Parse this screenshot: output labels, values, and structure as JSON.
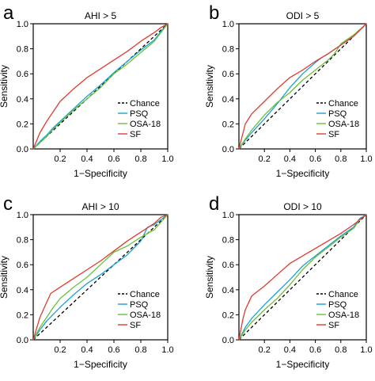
{
  "chart_data": [
    {
      "type": "line",
      "panel_letter": "a",
      "title": "AHI > 5",
      "xlabel": "1−Specificity",
      "ylabel": "Sensitivity",
      "xlim": [
        0,
        1
      ],
      "ylim": [
        0,
        1
      ],
      "xticks": [
        "0.2",
        "0.4",
        "0.6",
        "0.8",
        "1.0"
      ],
      "yticks": [
        "0.0",
        "0.2",
        "0.4",
        "0.6",
        "0.8",
        "1.0"
      ],
      "grid": false,
      "legend_position": "bottom-right",
      "series": [
        {
          "name": "Chance",
          "color": "#000000",
          "style": "dashed",
          "x": [
            0,
            1
          ],
          "y": [
            0,
            1
          ]
        },
        {
          "name": "PSQ",
          "color": "#1aa1d6",
          "style": "solid",
          "x": [
            0,
            0.05,
            0.1,
            0.15,
            0.2,
            0.3,
            0.4,
            0.5,
            0.6,
            0.7,
            0.8,
            0.9,
            0.95,
            1
          ],
          "y": [
            0,
            0.06,
            0.11,
            0.17,
            0.22,
            0.32,
            0.42,
            0.51,
            0.61,
            0.7,
            0.79,
            0.87,
            0.94,
            1
          ]
        },
        {
          "name": "OSA-18",
          "color": "#6cc03a",
          "style": "solid",
          "x": [
            0,
            0.05,
            0.1,
            0.15,
            0.2,
            0.3,
            0.4,
            0.5,
            0.6,
            0.7,
            0.8,
            0.9,
            0.95,
            1
          ],
          "y": [
            0,
            0.05,
            0.1,
            0.16,
            0.21,
            0.31,
            0.4,
            0.49,
            0.6,
            0.68,
            0.77,
            0.86,
            0.93,
            1
          ]
        },
        {
          "name": "SF",
          "color": "#e03a2e",
          "style": "solid",
          "x": [
            0,
            0.05,
            0.1,
            0.15,
            0.2,
            0.3,
            0.4,
            0.5,
            0.6,
            0.7,
            0.8,
            0.9,
            0.95,
            1
          ],
          "y": [
            0,
            0.13,
            0.22,
            0.3,
            0.38,
            0.48,
            0.57,
            0.64,
            0.71,
            0.78,
            0.86,
            0.93,
            0.97,
            1
          ]
        }
      ]
    },
    {
      "type": "line",
      "panel_letter": "b",
      "title": "ODI > 5",
      "xlabel": "1−Specificity",
      "ylabel": "Sensitivity",
      "xlim": [
        0,
        1
      ],
      "ylim": [
        0,
        1
      ],
      "xticks": [
        "0.2",
        "0.4",
        "0.6",
        "0.8",
        "1.0"
      ],
      "yticks": [
        "0.0",
        "0.2",
        "0.4",
        "0.6",
        "0.8",
        "1.0"
      ],
      "grid": false,
      "legend_position": "bottom-right",
      "series": [
        {
          "name": "Chance",
          "color": "#000000",
          "style": "dashed",
          "x": [
            0,
            1
          ],
          "y": [
            0,
            1
          ]
        },
        {
          "name": "PSQ",
          "color": "#1aa1d6",
          "style": "solid",
          "x": [
            0,
            0.05,
            0.1,
            0.2,
            0.3,
            0.4,
            0.5,
            0.6,
            0.65,
            0.7,
            0.8,
            0.9,
            1
          ],
          "y": [
            0,
            0.07,
            0.13,
            0.24,
            0.36,
            0.49,
            0.6,
            0.69,
            0.73,
            0.76,
            0.83,
            0.9,
            1
          ]
        },
        {
          "name": "OSA-18",
          "color": "#6cc03a",
          "style": "solid",
          "x": [
            0,
            0.05,
            0.1,
            0.2,
            0.3,
            0.4,
            0.5,
            0.6,
            0.7,
            0.75,
            0.8,
            0.9,
            1
          ],
          "y": [
            0,
            0.08,
            0.15,
            0.27,
            0.37,
            0.45,
            0.55,
            0.63,
            0.71,
            0.76,
            0.84,
            0.91,
            1
          ]
        },
        {
          "name": "SF",
          "color": "#e03a2e",
          "style": "solid",
          "x": [
            0,
            0.05,
            0.1,
            0.2,
            0.3,
            0.4,
            0.5,
            0.6,
            0.7,
            0.8,
            0.9,
            1
          ],
          "y": [
            0,
            0.2,
            0.28,
            0.38,
            0.48,
            0.57,
            0.63,
            0.7,
            0.76,
            0.83,
            0.9,
            1
          ]
        }
      ]
    },
    {
      "type": "line",
      "panel_letter": "c",
      "title": "AHI > 10",
      "xlabel": "1−Specificity",
      "ylabel": "Sensitivity",
      "xlim": [
        0,
        1
      ],
      "ylim": [
        0,
        1
      ],
      "xticks": [
        "0.2",
        "0.4",
        "0.6",
        "0.8",
        "1.0"
      ],
      "yticks": [
        "0.0",
        "0.2",
        "0.4",
        "0.6",
        "0.8",
        "1.0"
      ],
      "grid": false,
      "legend_position": "bottom-right",
      "series": [
        {
          "name": "Chance",
          "color": "#000000",
          "style": "dashed",
          "x": [
            0,
            1
          ],
          "y": [
            0,
            1
          ]
        },
        {
          "name": "PSQ",
          "color": "#1aa1d6",
          "style": "solid",
          "x": [
            0,
            0.05,
            0.1,
            0.2,
            0.3,
            0.4,
            0.5,
            0.6,
            0.7,
            0.8,
            0.85,
            0.9,
            1
          ],
          "y": [
            0,
            0.08,
            0.15,
            0.26,
            0.36,
            0.45,
            0.52,
            0.6,
            0.68,
            0.79,
            0.9,
            0.92,
            1
          ]
        },
        {
          "name": "OSA-18",
          "color": "#6cc03a",
          "style": "solid",
          "x": [
            0,
            0.05,
            0.1,
            0.15,
            0.2,
            0.3,
            0.4,
            0.5,
            0.6,
            0.7,
            0.8,
            0.9,
            1
          ],
          "y": [
            0,
            0.1,
            0.18,
            0.26,
            0.33,
            0.42,
            0.5,
            0.6,
            0.7,
            0.75,
            0.82,
            0.88,
            1
          ]
        },
        {
          "name": "SF",
          "color": "#e03a2e",
          "style": "solid",
          "x": [
            0,
            0.05,
            0.1,
            0.13,
            0.2,
            0.3,
            0.4,
            0.5,
            0.6,
            0.7,
            0.8,
            0.9,
            0.95,
            1
          ],
          "y": [
            0,
            0.18,
            0.3,
            0.37,
            0.42,
            0.49,
            0.56,
            0.63,
            0.71,
            0.79,
            0.86,
            0.93,
            0.98,
            1
          ]
        }
      ]
    },
    {
      "type": "line",
      "panel_letter": "d",
      "title": "ODI > 10",
      "xlabel": "1−Specificity",
      "ylabel": "Sensitivity",
      "xlim": [
        0,
        1
      ],
      "ylim": [
        0,
        1
      ],
      "xticks": [
        "0.2",
        "0.4",
        "0.6",
        "0.8",
        "1.0"
      ],
      "yticks": [
        "0.0",
        "0.2",
        "0.4",
        "0.6",
        "0.8",
        "1.0"
      ],
      "grid": false,
      "legend_position": "bottom-right",
      "series": [
        {
          "name": "Chance",
          "color": "#000000",
          "style": "dashed",
          "x": [
            0,
            1
          ],
          "y": [
            0,
            1
          ]
        },
        {
          "name": "PSQ",
          "color": "#1aa1d6",
          "style": "solid",
          "x": [
            0,
            0.05,
            0.1,
            0.2,
            0.3,
            0.4,
            0.5,
            0.6,
            0.7,
            0.8,
            0.9,
            0.95,
            1
          ],
          "y": [
            0,
            0.1,
            0.17,
            0.28,
            0.38,
            0.48,
            0.59,
            0.67,
            0.75,
            0.83,
            0.9,
            0.97,
            1
          ]
        },
        {
          "name": "OSA-18",
          "color": "#6cc03a",
          "style": "solid",
          "x": [
            0,
            0.05,
            0.1,
            0.2,
            0.3,
            0.4,
            0.5,
            0.6,
            0.7,
            0.8,
            0.9,
            0.95,
            1
          ],
          "y": [
            0,
            0.08,
            0.14,
            0.24,
            0.33,
            0.44,
            0.56,
            0.66,
            0.74,
            0.82,
            0.89,
            0.96,
            1
          ]
        },
        {
          "name": "SF",
          "color": "#e03a2e",
          "style": "solid",
          "x": [
            0,
            0.03,
            0.05,
            0.1,
            0.2,
            0.3,
            0.4,
            0.5,
            0.6,
            0.7,
            0.8,
            0.9,
            1
          ],
          "y": [
            0,
            0.16,
            0.24,
            0.35,
            0.43,
            0.52,
            0.61,
            0.67,
            0.73,
            0.79,
            0.85,
            0.92,
            1
          ]
        }
      ]
    }
  ]
}
